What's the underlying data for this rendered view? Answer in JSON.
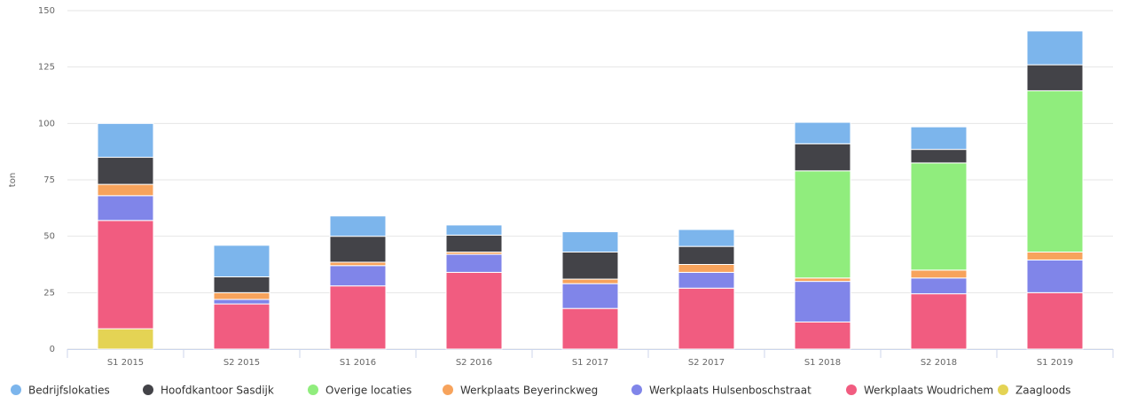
{
  "chart_data": {
    "type": "stacked_bar",
    "y_label": "ton",
    "categories": [
      "S1 2015",
      "S2 2015",
      "S1 2016",
      "S2 2016",
      "S1 2017",
      "S2 2017",
      "S1 2018",
      "S2 2018",
      "S1 2019"
    ],
    "series": [
      {
        "name": "Bedrijfslokaties",
        "color": "#7cb5ec",
        "values": [
          15,
          14,
          9,
          4.5,
          9,
          7.5,
          9.5,
          10,
          15
        ]
      },
      {
        "name": "Hoofdkantoor Sasdijk",
        "color": "#434348",
        "values": [
          12,
          7,
          11.5,
          7.5,
          12,
          8,
          12,
          6,
          11.5
        ]
      },
      {
        "name": "Overige locaties",
        "color": "#90ed7d",
        "values": [
          null,
          null,
          null,
          null,
          null,
          null,
          47.5,
          47.5,
          71.5
        ]
      },
      {
        "name": "Werkplaats Beyerinckweg",
        "color": "#f7a35c",
        "values": [
          5,
          3,
          1.5,
          1,
          2,
          3.5,
          1.5,
          3.5,
          3.5
        ]
      },
      {
        "name": "Werkplaats Hulsenboschstraat",
        "color": "#8085e9",
        "values": [
          11,
          2,
          9,
          8,
          11,
          7,
          18,
          7,
          14.5
        ]
      },
      {
        "name": "Werkplaats Woudrichem",
        "color": "#f15c80",
        "values": [
          48,
          20,
          28,
          34,
          18,
          27,
          12,
          24.5,
          25
        ]
      },
      {
        "name": "Zaagloods",
        "color": "#e4d354",
        "values": [
          9,
          null,
          null,
          null,
          null,
          null,
          null,
          null,
          null
        ]
      }
    ],
    "ylim": [
      0,
      150
    ],
    "yticks": [
      0,
      25,
      50,
      75,
      100,
      125,
      150
    ],
    "grid": true,
    "legend": "bottom"
  }
}
